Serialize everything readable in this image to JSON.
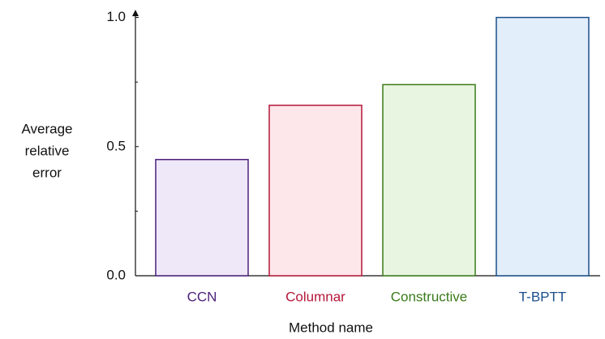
{
  "chart_data": {
    "type": "bar",
    "categories": [
      "CCN",
      "Columnar",
      "Constructive",
      "T-BPTT"
    ],
    "values": [
      0.45,
      0.66,
      0.74,
      1.0
    ],
    "colors": [
      "#4b1f7a",
      "#b5173a",
      "#3a7a1a",
      "#1a4f8a"
    ],
    "fills": [
      "#efe8f8",
      "#fde7ea",
      "#e8f5e0",
      "#e3eefb"
    ],
    "ylabel": [
      "Average",
      "relative",
      "error"
    ],
    "xlabel": "Method name",
    "ylim": [
      0,
      1.03
    ],
    "yticks": [
      {
        "value": 0,
        "label": "0.0"
      },
      {
        "value": 0.5,
        "label": "0.5"
      },
      {
        "value": 1,
        "label": "1.0"
      }
    ],
    "minor_yticks": [
      0.25,
      0.75
    ]
  }
}
